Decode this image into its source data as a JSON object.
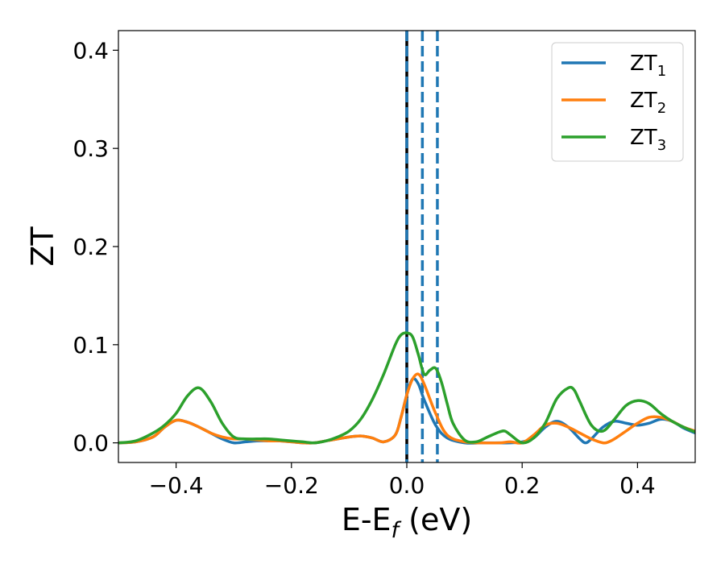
{
  "chart_data": {
    "type": "line",
    "xlabel": "E-E",
    "xlabel_sub": "f",
    "xlabel_unit": " (eV)",
    "ylabel": "ZT",
    "xlim": [
      -0.5,
      0.5
    ],
    "ylim": [
      -0.02,
      0.42
    ],
    "xticks": [
      -0.4,
      -0.2,
      0.0,
      0.2,
      0.4
    ],
    "xtick_labels": [
      "−0.4",
      "−0.2",
      "0.0",
      "0.2",
      "0.4"
    ],
    "yticks": [
      0.0,
      0.1,
      0.2,
      0.3,
      0.4
    ],
    "ytick_labels": [
      "0.0",
      "0.1",
      "0.2",
      "0.3",
      "0.4"
    ],
    "legend_position": "top-right",
    "grid": false,
    "vlines": [
      {
        "x": 0.0,
        "color": "#000000",
        "style": "solid"
      },
      {
        "x": 0.0,
        "color": "#1f77b4",
        "style": "dashed"
      },
      {
        "x": 0.027,
        "color": "#1f77b4",
        "style": "dashed"
      },
      {
        "x": 0.053,
        "color": "#1f77b4",
        "style": "dashed"
      }
    ],
    "series": [
      {
        "name": "ZT",
        "sub": "1",
        "color": "#1f77b4",
        "x": [
          -0.5,
          -0.47,
          -0.44,
          -0.42,
          -0.4,
          -0.38,
          -0.36,
          -0.34,
          -0.32,
          -0.3,
          -0.28,
          -0.26,
          -0.24,
          -0.22,
          -0.2,
          -0.18,
          -0.16,
          -0.14,
          -0.12,
          -0.1,
          -0.08,
          -0.06,
          -0.04,
          -0.02,
          -0.01,
          0.0,
          0.01,
          0.02,
          0.03,
          0.05,
          0.07,
          0.1,
          0.13,
          0.16,
          0.18,
          0.2,
          0.22,
          0.24,
          0.26,
          0.28,
          0.3,
          0.31,
          0.32,
          0.34,
          0.36,
          0.38,
          0.4,
          0.42,
          0.44,
          0.46,
          0.48,
          0.5
        ],
        "y": [
          0.0,
          0.001,
          0.006,
          0.016,
          0.023,
          0.021,
          0.016,
          0.01,
          0.004,
          0.0,
          0.001,
          0.002,
          0.002,
          0.002,
          0.001,
          0.0,
          0.0,
          0.002,
          0.004,
          0.006,
          0.007,
          0.005,
          0.001,
          0.008,
          0.026,
          0.049,
          0.065,
          0.06,
          0.044,
          0.018,
          0.005,
          0.0,
          0.0,
          0.0,
          0.0,
          0.001,
          0.005,
          0.016,
          0.022,
          0.016,
          0.004,
          0.0,
          0.004,
          0.016,
          0.022,
          0.02,
          0.018,
          0.02,
          0.024,
          0.022,
          0.015,
          0.01
        ]
      },
      {
        "name": "ZT",
        "sub": "2",
        "color": "#ff7f0e",
        "x": [
          -0.5,
          -0.47,
          -0.44,
          -0.42,
          -0.4,
          -0.38,
          -0.36,
          -0.34,
          -0.32,
          -0.3,
          -0.28,
          -0.26,
          -0.24,
          -0.22,
          -0.2,
          -0.18,
          -0.16,
          -0.14,
          -0.12,
          -0.1,
          -0.08,
          -0.06,
          -0.04,
          -0.02,
          -0.01,
          0.0,
          0.01,
          0.02,
          0.03,
          0.05,
          0.07,
          0.1,
          0.13,
          0.16,
          0.18,
          0.2,
          0.22,
          0.24,
          0.26,
          0.28,
          0.3,
          0.32,
          0.34,
          0.35,
          0.36,
          0.38,
          0.4,
          0.42,
          0.44,
          0.46,
          0.48,
          0.5
        ],
        "y": [
          0.0,
          0.001,
          0.006,
          0.016,
          0.023,
          0.021,
          0.016,
          0.01,
          0.006,
          0.004,
          0.004,
          0.003,
          0.002,
          0.002,
          0.001,
          0.0,
          0.0,
          0.002,
          0.004,
          0.006,
          0.007,
          0.005,
          0.001,
          0.008,
          0.026,
          0.049,
          0.065,
          0.07,
          0.06,
          0.03,
          0.008,
          0.001,
          0.0,
          0.0,
          0.001,
          0.0,
          0.008,
          0.018,
          0.02,
          0.016,
          0.01,
          0.004,
          0.0,
          0.001,
          0.004,
          0.012,
          0.02,
          0.026,
          0.026,
          0.022,
          0.016,
          0.012
        ]
      },
      {
        "name": "ZT",
        "sub": "3",
        "color": "#2ca02c",
        "x": [
          -0.5,
          -0.47,
          -0.44,
          -0.42,
          -0.4,
          -0.38,
          -0.36,
          -0.34,
          -0.32,
          -0.3,
          -0.28,
          -0.26,
          -0.24,
          -0.22,
          -0.2,
          -0.18,
          -0.16,
          -0.14,
          -0.12,
          -0.1,
          -0.08,
          -0.06,
          -0.04,
          -0.02,
          -0.01,
          0.0,
          0.01,
          0.02,
          0.03,
          0.04,
          0.05,
          0.06,
          0.07,
          0.08,
          0.1,
          0.12,
          0.14,
          0.16,
          0.17,
          0.18,
          0.2,
          0.22,
          0.24,
          0.26,
          0.28,
          0.29,
          0.3,
          0.32,
          0.34,
          0.36,
          0.38,
          0.4,
          0.42,
          0.44,
          0.46,
          0.48,
          0.5
        ],
        "y": [
          0.0,
          0.002,
          0.01,
          0.018,
          0.03,
          0.048,
          0.056,
          0.042,
          0.02,
          0.006,
          0.004,
          0.004,
          0.004,
          0.003,
          0.002,
          0.001,
          0.0,
          0.002,
          0.006,
          0.012,
          0.024,
          0.044,
          0.07,
          0.1,
          0.11,
          0.112,
          0.108,
          0.09,
          0.07,
          0.074,
          0.076,
          0.062,
          0.04,
          0.02,
          0.003,
          0.001,
          0.006,
          0.011,
          0.012,
          0.008,
          0.0,
          0.005,
          0.02,
          0.045,
          0.056,
          0.054,
          0.042,
          0.018,
          0.012,
          0.024,
          0.038,
          0.043,
          0.04,
          0.03,
          0.022,
          0.016,
          0.011
        ]
      }
    ]
  }
}
